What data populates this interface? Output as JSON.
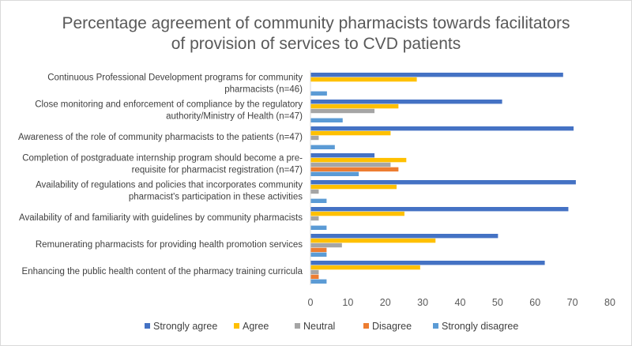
{
  "chart_data": {
    "type": "bar",
    "orientation": "horizontal",
    "title_lines": [
      "Percentage agreement of community pharmacists towards facilitators",
      "of  provision of services to CVD patients"
    ],
    "categories": [
      [
        "Continuous Professional Development programs for community",
        "pharmacists (n=46)"
      ],
      [
        "Close monitoring and enforcement of compliance by the regulatory",
        "authority/Ministry of Health (n=47)"
      ],
      [
        "Awareness of the role of community pharmacists to the patients (n=47)"
      ],
      [
        "Completion of postgraduate internship program should become a pre-",
        "requisite for pharmacist registration (n=47)"
      ],
      [
        "Availability of regulations and policies that incorporates community",
        "pharmacist's participation in these activities"
      ],
      [
        "Availability of and familiarity with guidelines by community pharmacists"
      ],
      [
        "Remunerating pharmacists  for  providing  health promotion services"
      ],
      [
        "Enhancing the public health content of the pharmacy training curricula"
      ]
    ],
    "series": [
      {
        "name": "Strongly agree",
        "color": "#4472c4",
        "values": [
          67.4,
          51.1,
          70.2,
          17.0,
          70.8,
          68.8,
          50.0,
          62.5
        ]
      },
      {
        "name": "Agree",
        "color": "#ffc000",
        "values": [
          28.3,
          23.4,
          21.3,
          25.5,
          22.9,
          25.0,
          33.3,
          29.2
        ]
      },
      {
        "name": "Neutral",
        "color": "#a5a5a5",
        "values": [
          0,
          17.0,
          2.1,
          21.3,
          2.1,
          2.1,
          8.3,
          2.1
        ]
      },
      {
        "name": "Disagree",
        "color": "#ed7d31",
        "values": [
          0,
          0,
          0,
          23.4,
          0,
          0,
          4.2,
          2.1
        ]
      },
      {
        "name": "Strongly disagree",
        "color": "#5b9bd5",
        "values": [
          4.3,
          8.5,
          6.4,
          12.8,
          4.2,
          4.2,
          4.2,
          4.2
        ]
      }
    ],
    "xlim": [
      0,
      80
    ],
    "xticks": [
      "0",
      "10",
      "20",
      "30",
      "40",
      "50",
      "60",
      "70",
      "80"
    ],
    "grid": false,
    "legend_position": "bottom"
  }
}
